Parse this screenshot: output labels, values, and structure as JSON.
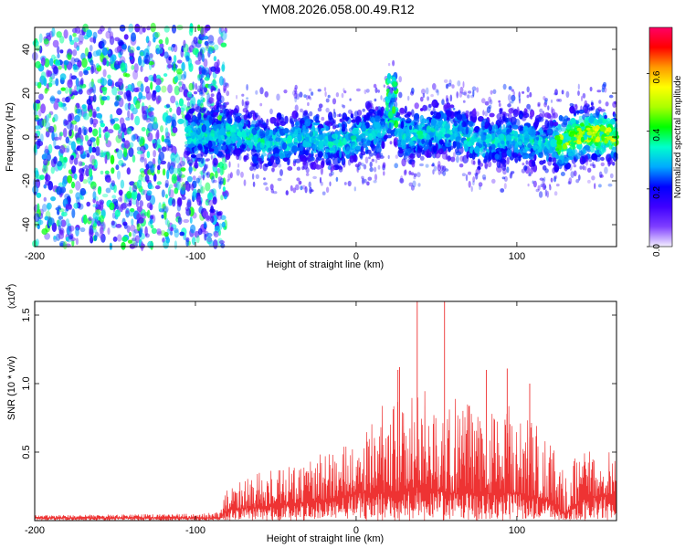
{
  "title": "YM08.2026.058.00.49.R12",
  "chart_data": [
    {
      "type": "heatmap",
      "xlabel": "Height of straight line (km)",
      "ylabel": "Frequency (Hz)",
      "xlim": [
        -200,
        162
      ],
      "ylim": [
        -50,
        50
      ],
      "xticks": [
        -200,
        -100,
        0,
        100
      ],
      "yticks": [
        -40,
        -20,
        0,
        20,
        40
      ],
      "colorbar": {
        "label": "Normalized spectral amplitude",
        "range": [
          0,
          0.76
        ],
        "ticks": [
          0.0,
          0.2,
          0.4,
          0.6
        ],
        "tick_labels": [
          "0.0",
          "0.2",
          "0.4",
          "0.6"
        ],
        "colors": [
          "#f4f0ff",
          "#7f3fff",
          "#3f00ff",
          "#0000ff",
          "#00aaff",
          "#00ffcc",
          "#00ff00",
          "#aaff00",
          "#ffff00",
          "#ff9900",
          "#ff0000",
          "#ff0066"
        ]
      },
      "regions": [
        {
          "name": "noise",
          "x_range": [
            -200,
            -85
          ],
          "freq_spread": [
            -50,
            50
          ],
          "level": 0.15
        },
        {
          "name": "signal",
          "x_range": [
            -105,
            162
          ],
          "center_freq": 0,
          "half_width_hz": 10,
          "level": 0.3
        },
        {
          "name": "feature",
          "x": 22,
          "freq_peak": 28,
          "level": 0.4
        },
        {
          "name": "strong",
          "x_range": [
            125,
            162
          ],
          "level": 0.5
        }
      ]
    },
    {
      "type": "line",
      "color": "#ee3333",
      "xlabel": "Height of straight line (km)",
      "ylabel": "SNR (10 * v/v)",
      "multiplier_label": "(x10",
      "multiplier_exponent": "4",
      "multiplier_close": ")",
      "xlim": [
        -200,
        162
      ],
      "ylim": [
        0,
        1.6
      ],
      "xticks": [
        -200,
        -100,
        0,
        100
      ],
      "yticks": [
        0.5,
        1.0,
        1.5
      ],
      "ytick_labels": [
        "0.5",
        "1.0",
        "1.5"
      ],
      "envelope": {
        "x": [
          -200,
          -100,
          -85,
          -80,
          -60,
          -40,
          -20,
          0,
          20,
          40,
          60,
          80,
          100,
          120,
          130,
          140,
          162
        ],
        "base": [
          0.02,
          0.02,
          0.02,
          0.08,
          0.1,
          0.12,
          0.15,
          0.2,
          0.2,
          0.25,
          0.2,
          0.2,
          0.2,
          0.15,
          0.05,
          0.15,
          0.2
        ],
        "peak": [
          0.04,
          0.05,
          0.06,
          0.25,
          0.35,
          0.4,
          0.5,
          0.6,
          0.9,
          1.0,
          0.9,
          0.8,
          0.85,
          0.6,
          0.35,
          0.55,
          0.55
        ]
      },
      "spikes": [
        {
          "x": 26,
          "y": 1.1
        },
        {
          "x": 27,
          "y": 1.12
        },
        {
          "x": 38,
          "y": 1.6
        },
        {
          "x": 55,
          "y": 1.6
        },
        {
          "x": 81,
          "y": 1.1
        },
        {
          "x": 94,
          "y": 1.11
        },
        {
          "x": 108,
          "y": 1.0
        }
      ]
    }
  ]
}
